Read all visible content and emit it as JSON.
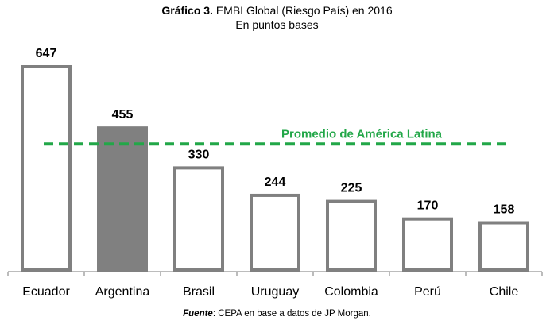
{
  "chart_data": {
    "type": "bar",
    "title_bold": "Gráfico 3.",
    "title": "EMBI Global (Riesgo País) en 2016",
    "subtitle": "En puntos bases",
    "categories": [
      "Ecuador",
      "Argentina",
      "Brasil",
      "Uruguay",
      "Colombia",
      "Perú",
      "Chile"
    ],
    "values": [
      647,
      455,
      330,
      244,
      225,
      170,
      158
    ],
    "highlighted": "Argentina",
    "reference_line": {
      "label": "Promedio de América  Latina",
      "value": 400,
      "color": "#22a748"
    },
    "colors": {
      "bar_outline": "#808080",
      "highlight_fill": "#808080"
    },
    "ylim": [
      0,
      647
    ],
    "xlabel": "",
    "ylabel": "",
    "grid": false
  },
  "source": {
    "label": "Fuente",
    "text": ": CEPA en base a datos de JP Morgan."
  }
}
